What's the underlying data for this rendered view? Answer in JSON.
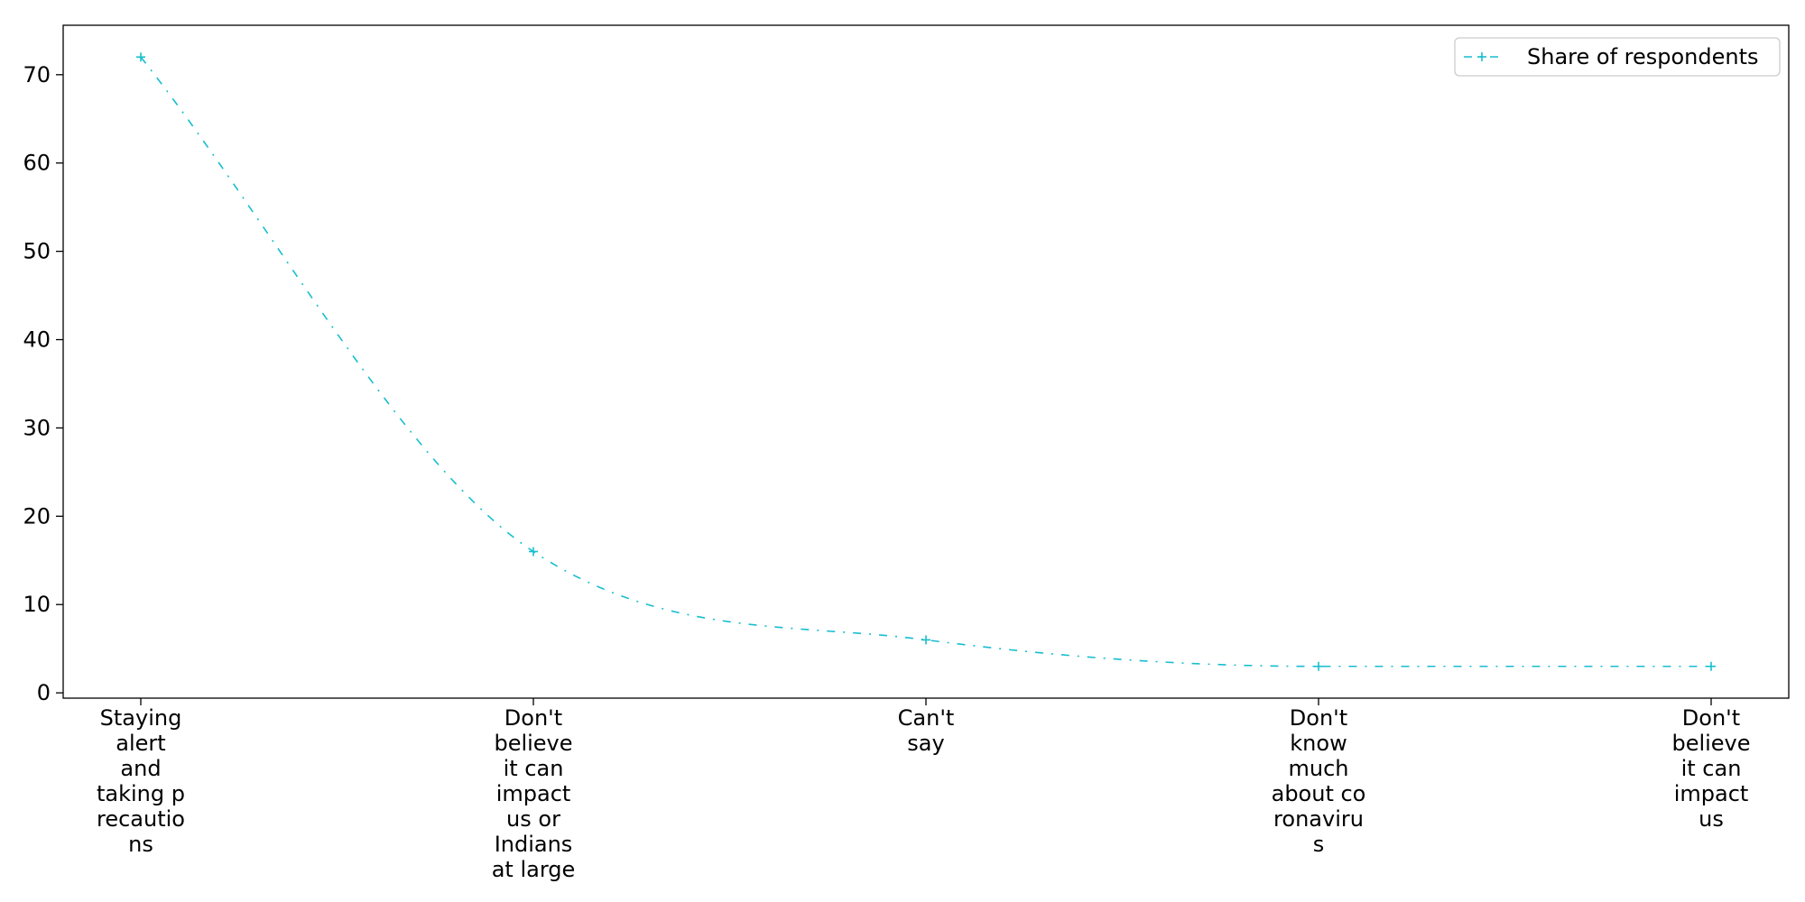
{
  "chart_data": {
    "type": "line",
    "categories": [
      "Staying alert and taking precautions",
      "Don't believe it can impact us or Indians at large",
      "Can't say",
      "Don't know much about coronavirus",
      "Don't believe it can impact us"
    ],
    "category_label_lines": [
      [
        "Staying",
        "alert",
        "and",
        "taking p",
        "recautio",
        "ns"
      ],
      [
        "Don't",
        "believe",
        "it can",
        "impact",
        "us or",
        "Indians",
        "at large"
      ],
      [
        "Can't",
        "say"
      ],
      [
        "Don't",
        "know",
        "much",
        "about co",
        "ronaviru",
        "s"
      ],
      [
        "Don't",
        "believe",
        "it can",
        "impact",
        "us"
      ]
    ],
    "series": [
      {
        "name": "Share of respondents",
        "values": [
          72,
          16,
          6,
          3,
          3
        ],
        "color": "#17becf",
        "line_style": "dash-dot",
        "marker": "plus"
      }
    ],
    "curve": "smooth",
    "title": "",
    "xlabel": "",
    "ylabel": "",
    "ylim": [
      -0.6,
      75.6
    ],
    "yticks": [
      0,
      10,
      20,
      30,
      40,
      50,
      60,
      70
    ],
    "grid": false,
    "legend_position": "top-right"
  }
}
